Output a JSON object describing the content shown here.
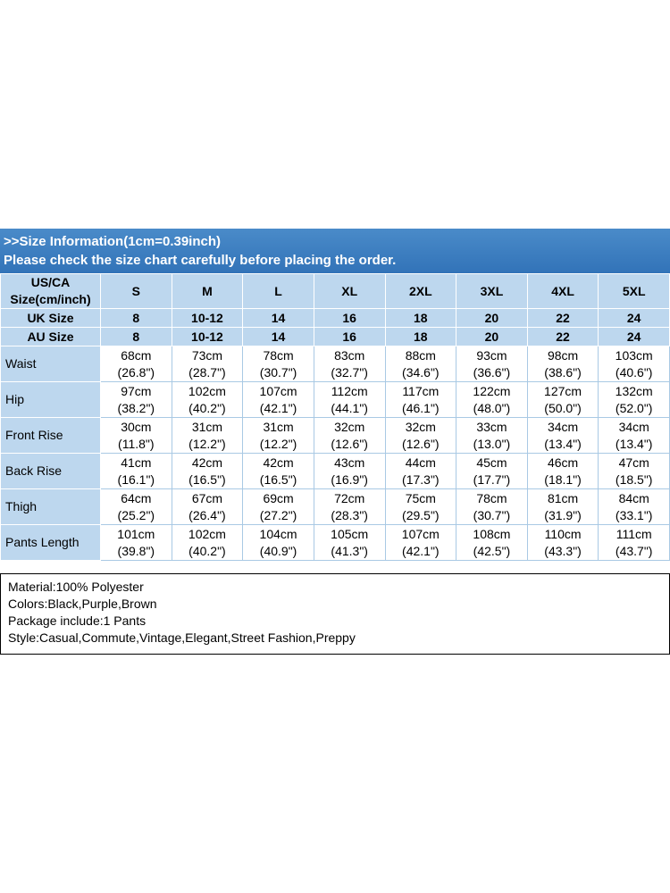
{
  "colors": {
    "banner_blue": "#3273b8",
    "banner_blue_light": "#4a8bc9",
    "header_blue": "#bdd7ee",
    "grid_blue": "#a9c9e4",
    "text_black": "#000000"
  },
  "banner": {
    "line1": ">>Size Information(1cm=0.39inch)",
    "line2": "Please check the size chart carefully before placing the order."
  },
  "table": {
    "corner_line1": "US/CA",
    "corner_line2": "Size(cm/inch)",
    "sizes": [
      "S",
      "M",
      "L",
      "XL",
      "2XL",
      "3XL",
      "4XL",
      "5XL"
    ],
    "size_rows": [
      {
        "label": "UK Size",
        "values": [
          "8",
          "10-12",
          "14",
          "16",
          "18",
          "20",
          "22",
          "24"
        ]
      },
      {
        "label": "AU Size",
        "values": [
          "8",
          "10-12",
          "14",
          "16",
          "18",
          "20",
          "22",
          "24"
        ]
      }
    ],
    "measurement_rows": [
      {
        "label": "Waist",
        "cm": [
          "68cm",
          "73cm",
          "78cm",
          "83cm",
          "88cm",
          "93cm",
          "98cm",
          "103cm"
        ],
        "inch": [
          "(26.8\")",
          "(28.7\")",
          "(30.7\")",
          "(32.7\")",
          "(34.6\")",
          "(36.6\")",
          "(38.6\")",
          "(40.6\")"
        ]
      },
      {
        "label": "Hip",
        "cm": [
          "97cm",
          "102cm",
          "107cm",
          "112cm",
          "117cm",
          "122cm",
          "127cm",
          "132cm"
        ],
        "inch": [
          "(38.2\")",
          "(40.2\")",
          "(42.1\")",
          "(44.1\")",
          "(46.1\")",
          "(48.0\")",
          "(50.0\")",
          "(52.0\")"
        ]
      },
      {
        "label": "Front Rise",
        "cm": [
          "30cm",
          "31cm",
          "31cm",
          "32cm",
          "32cm",
          "33cm",
          "34cm",
          "34cm"
        ],
        "inch": [
          "(11.8\")",
          "(12.2\")",
          "(12.2\")",
          "(12.6\")",
          "(12.6\")",
          "(13.0\")",
          "(13.4\")",
          "(13.4\")"
        ]
      },
      {
        "label": "Back Rise",
        "cm": [
          "41cm",
          "42cm",
          "42cm",
          "43cm",
          "44cm",
          "45cm",
          "46cm",
          "47cm"
        ],
        "inch": [
          "(16.1\")",
          "(16.5\")",
          "(16.5\")",
          "(16.9\")",
          "(17.3\")",
          "(17.7\")",
          "(18.1\")",
          "(18.5\")"
        ]
      },
      {
        "label": "Thigh",
        "cm": [
          "64cm",
          "67cm",
          "69cm",
          "72cm",
          "75cm",
          "78cm",
          "81cm",
          "84cm"
        ],
        "inch": [
          "(25.2\")",
          "(26.4\")",
          "(27.2\")",
          "(28.3\")",
          "(29.5\")",
          "(30.7\")",
          "(31.9\")",
          "(33.1\")"
        ]
      },
      {
        "label": "Pants Length",
        "cm": [
          "101cm",
          "102cm",
          "104cm",
          "105cm",
          "107cm",
          "108cm",
          "110cm",
          "111cm"
        ],
        "inch": [
          "(39.8\")",
          "(40.2\")",
          "(40.9\")",
          "(41.3\")",
          "(42.1\")",
          "(42.5\")",
          "(43.3\")",
          "(43.7\")"
        ]
      }
    ]
  },
  "details": {
    "lines": [
      "Material:100% Polyester",
      "Colors:Black,Purple,Brown",
      "Package include:1 Pants",
      "Style:Casual,Commute,Vintage,Elegant,Street Fashion,Preppy"
    ]
  }
}
